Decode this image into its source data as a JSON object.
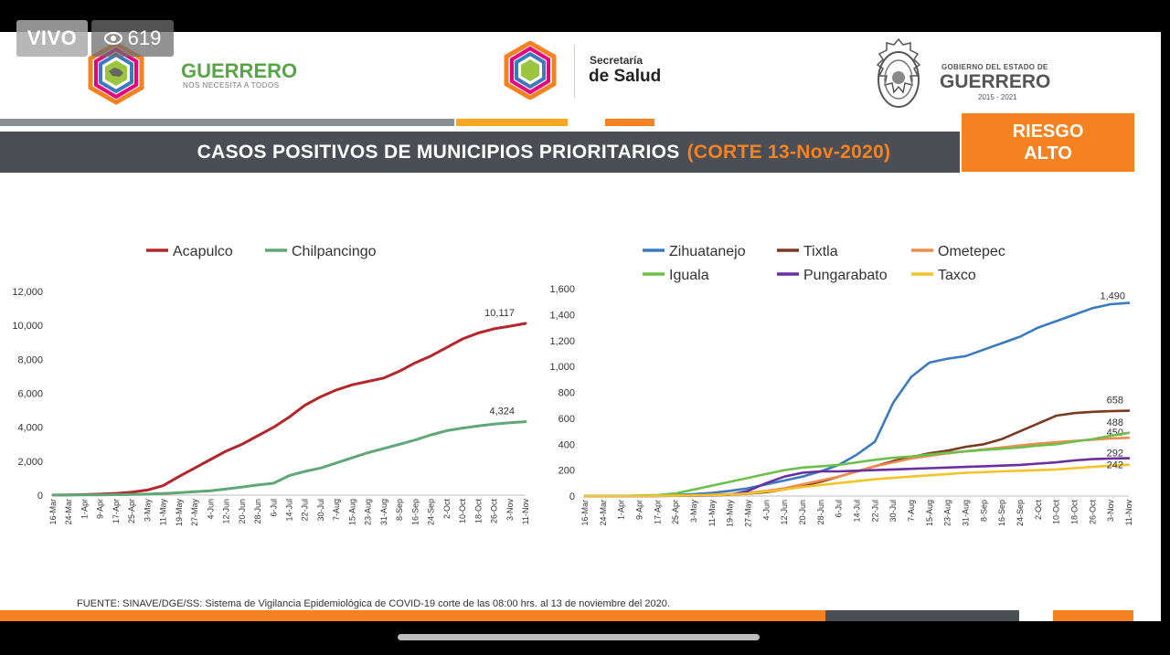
{
  "overlay": {
    "live_label": "VIVO",
    "viewer_count": "619"
  },
  "header": {
    "guerrero_logo_title": "GUERRERO",
    "guerrero_logo_subtitle": "NOS NECESITA A TODOS",
    "salud_line1": "Secretaría",
    "salud_line2": "de Salud",
    "gob_line1": "GOBIERNO DEL ESTADO DE",
    "gob_line2": "GUERRERO",
    "gob_line3": "2015 - 2021",
    "title": "CASOS POSITIVOS DE MUNICIPIOS PRIORITARIOS",
    "title_corte": "(CORTE 13-Nov-2020)",
    "risk_line1": "RIESGO",
    "risk_line2": "ALTO"
  },
  "footer": {
    "source": "FUENTE: SINAVE/DGE/SS: Sistema de Vigilancia Epidemiológica de COVID-19 corte de las 08:00 hrs. al 13 de noviembre del 2020."
  },
  "colors": {
    "acapulco": "#b5262b",
    "chilpancingo": "#5fa777",
    "zihuatanejo": "#3a7bbf",
    "tixtla": "#7a3a22",
    "ometepec": "#ee8a4a",
    "iguala": "#6cbf4a",
    "pungarabato": "#6a2f9e",
    "taxco": "#f2c42a",
    "orange": "#f58220",
    "gray_bar": "#4b4f55"
  },
  "chart_data": [
    {
      "type": "line",
      "title": "",
      "xlabel": "",
      "ylabel": "",
      "ylim": [
        0,
        12000
      ],
      "yticks": [
        "0",
        "2,000",
        "4,000",
        "6,000",
        "8,000",
        "10,000",
        "12,000"
      ],
      "categories": [
        "16-Mar",
        "24-Mar",
        "1-Apr",
        "9-Apr",
        "17-Apr",
        "25-Apr",
        "3-May",
        "11-May",
        "19-May",
        "27-May",
        "4-Jun",
        "12-Jun",
        "20-Jun",
        "28-Jun",
        "6-Jul",
        "14-Jul",
        "22-Jul",
        "30-Jul",
        "7-Aug",
        "15-Aug",
        "23-Aug",
        "31-Aug",
        "8-Sep",
        "16-Sep",
        "24-Sep",
        "2-Oct",
        "10-Oct",
        "18-Oct",
        "26-Oct",
        "3-Nov",
        "11-Nov"
      ],
      "legend_position": "top",
      "series": [
        {
          "name": "Acapulco",
          "color_key": "acapulco",
          "end_label": "10,117",
          "values": [
            5,
            10,
            30,
            60,
            100,
            180,
            300,
            560,
            1100,
            1600,
            2100,
            2600,
            3000,
            3500,
            4000,
            4600,
            5300,
            5800,
            6200,
            6500,
            6700,
            6900,
            7300,
            7800,
            8200,
            8700,
            9200,
            9550,
            9800,
            9950,
            10117
          ]
        },
        {
          "name": "Chilpancingo",
          "color_key": "chilpancingo",
          "end_label": "4,324",
          "values": [
            2,
            5,
            10,
            15,
            25,
            40,
            60,
            90,
            140,
            200,
            260,
            360,
            480,
            600,
            700,
            1150,
            1400,
            1600,
            1900,
            2200,
            2500,
            2750,
            3000,
            3250,
            3550,
            3800,
            3950,
            4080,
            4180,
            4260,
            4324
          ]
        }
      ]
    },
    {
      "type": "line",
      "title": "",
      "xlabel": "",
      "ylabel": "",
      "ylim": [
        0,
        1600
      ],
      "yticks": [
        "0",
        "200",
        "400",
        "600",
        "800",
        "1,000",
        "1,200",
        "1,400",
        "1,600"
      ],
      "categories": [
        "16-Mar",
        "24-Mar",
        "1-Apr",
        "9-Apr",
        "17-Apr",
        "25-Apr",
        "3-May",
        "11-May",
        "19-May",
        "27-May",
        "4-Jun",
        "12-Jun",
        "20-Jun",
        "28-Jun",
        "6-Jul",
        "14-Jul",
        "22-Jul",
        "30-Jul",
        "7-Aug",
        "15-Aug",
        "23-Aug",
        "31-Aug",
        "8-Sep",
        "16-Sep",
        "24-Sep",
        "2-Oct",
        "10-Oct",
        "18-Oct",
        "26-Oct",
        "3-Nov",
        "11-Nov"
      ],
      "legend_position": "top",
      "series": [
        {
          "name": "Zihuatanejo",
          "color_key": "zihuatanejo",
          "end_label": "1,490",
          "values": [
            0,
            0,
            1,
            2,
            4,
            8,
            15,
            25,
            40,
            60,
            90,
            120,
            150,
            190,
            240,
            320,
            420,
            720,
            920,
            1030,
            1060,
            1080,
            1130,
            1180,
            1230,
            1300,
            1350,
            1400,
            1450,
            1480,
            1490
          ]
        },
        {
          "name": "Tixtla",
          "color_key": "tixtla",
          "end_label": "658",
          "values": [
            0,
            0,
            0,
            1,
            2,
            3,
            5,
            8,
            12,
            18,
            30,
            50,
            80,
            110,
            150,
            190,
            230,
            270,
            300,
            330,
            350,
            380,
            400,
            440,
            500,
            560,
            620,
            640,
            650,
            655,
            658
          ]
        },
        {
          "name": "Ometepec",
          "color_key": "ometepec",
          "end_label": "450",
          "values": [
            0,
            0,
            0,
            1,
            2,
            4,
            6,
            10,
            15,
            25,
            40,
            60,
            90,
            120,
            150,
            190,
            230,
            260,
            290,
            310,
            330,
            345,
            360,
            375,
            390,
            405,
            415,
            425,
            435,
            445,
            450
          ]
        },
        {
          "name": "Iguala",
          "color_key": "iguala",
          "end_label": "488",
          "values": [
            0,
            0,
            1,
            3,
            8,
            20,
            50,
            80,
            110,
            140,
            170,
            200,
            220,
            230,
            240,
            260,
            280,
            295,
            305,
            320,
            335,
            345,
            355,
            365,
            375,
            390,
            400,
            420,
            440,
            465,
            488
          ]
        },
        {
          "name": "Pungarabato",
          "color_key": "pungarabato",
          "end_label": "292",
          "values": [
            0,
            0,
            0,
            0,
            1,
            2,
            3,
            5,
            10,
            40,
            100,
            150,
            180,
            190,
            190,
            195,
            200,
            205,
            210,
            215,
            220,
            225,
            230,
            235,
            240,
            250,
            260,
            275,
            285,
            290,
            292
          ]
        },
        {
          "name": "Taxco",
          "color_key": "taxco",
          "end_label": "242",
          "values": [
            0,
            0,
            0,
            1,
            2,
            3,
            5,
            8,
            12,
            20,
            35,
            50,
            70,
            85,
            100,
            115,
            130,
            140,
            150,
            160,
            170,
            180,
            185,
            190,
            195,
            200,
            205,
            215,
            225,
            235,
            242
          ]
        }
      ]
    }
  ]
}
